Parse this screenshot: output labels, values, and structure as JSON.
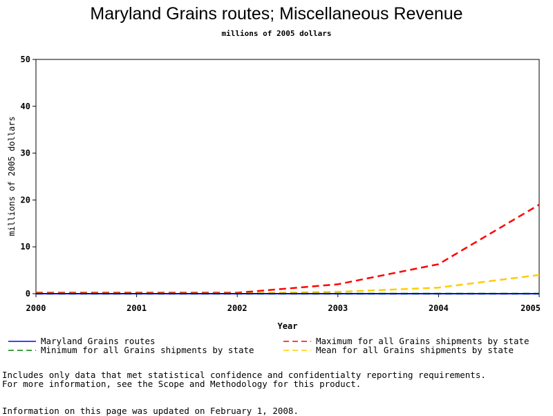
{
  "chart_data": {
    "type": "line",
    "title": "Maryland Grains routes; Miscellaneous Revenue",
    "subtitle": "millions of 2005 dollars",
    "xlabel": "Year",
    "ylabel": "millions of 2005 dollars",
    "x": [
      2000,
      2001,
      2002,
      2003,
      2004,
      2005
    ],
    "xlim": [
      2000,
      2005
    ],
    "ylim": [
      0,
      50
    ],
    "yticks": [
      0,
      10,
      20,
      30,
      40,
      50
    ],
    "grid": false,
    "legend_position": "bottom",
    "series": [
      {
        "name": "Maryland Grains routes",
        "values": [
          0,
          0,
          0,
          0,
          0,
          0
        ],
        "color": "#0000ff",
        "style": "solid"
      },
      {
        "name": "Maximum for all Grains shipments by state",
        "values": [
          0.2,
          0.2,
          0.2,
          2.0,
          6.3,
          19.0
        ],
        "color": "#ff0000",
        "style": "dashed"
      },
      {
        "name": "Minimum for all Grains shipments by state",
        "values": [
          0,
          0,
          0,
          0,
          0,
          0
        ],
        "color": "#008000",
        "style": "dashed"
      },
      {
        "name": "Mean for all Grains shipments by state",
        "values": [
          0.05,
          0.05,
          0.05,
          0.4,
          1.3,
          4.0
        ],
        "color": "#ffcc00",
        "style": "dashed"
      }
    ]
  },
  "footnotes": {
    "line1": "Includes only data that met statistical confidence and confidentialty reporting requirements.",
    "line2": "For more information, see the Scope and Methodology for this product.",
    "updated": "Information on this page was updated on February 1, 2008."
  }
}
